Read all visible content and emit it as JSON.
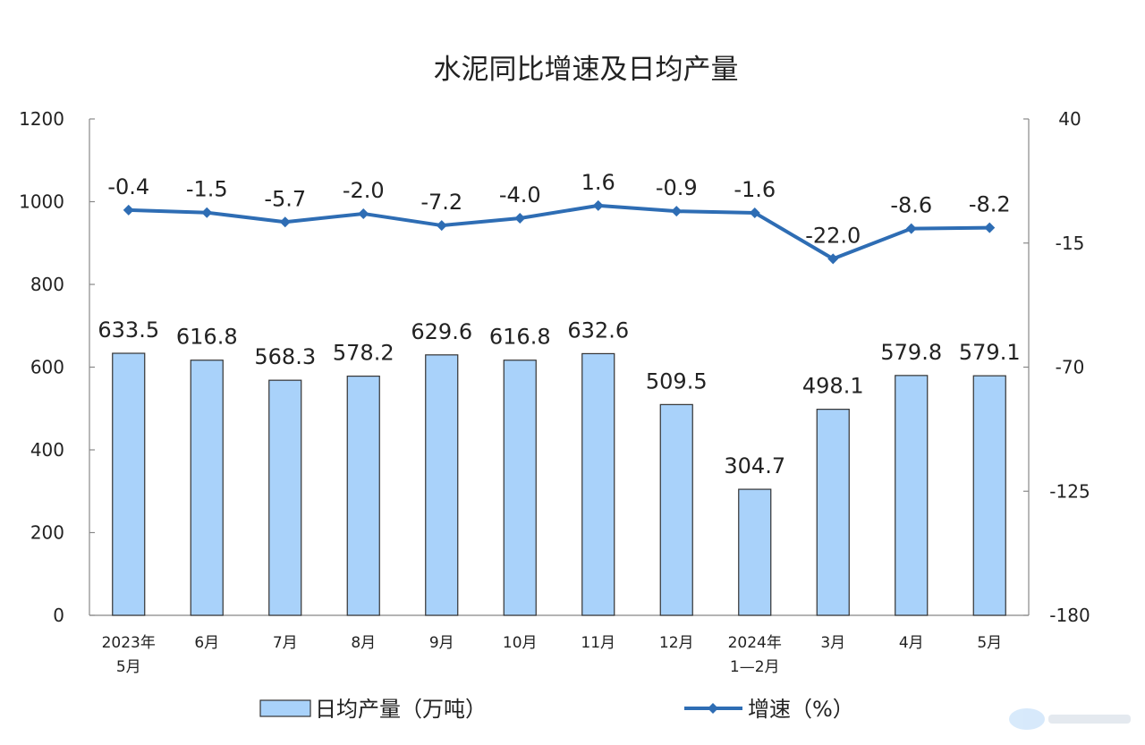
{
  "chart_data": {
    "type": "bar",
    "title": "水泥同比增速及日均产量",
    "categories": [
      [
        "2023年",
        "5月"
      ],
      [
        "6月"
      ],
      [
        "7月"
      ],
      [
        "8月"
      ],
      [
        "9月"
      ],
      [
        "10月"
      ],
      [
        "11月"
      ],
      [
        "12月"
      ],
      [
        "2024年",
        "1—2月"
      ],
      [
        "3月"
      ],
      [
        "4月"
      ],
      [
        "5月"
      ]
    ],
    "series": [
      {
        "name": "日均产量（万吨）",
        "type": "bar",
        "axis": "left",
        "color": "#a9d2fa",
        "values": [
          633.5,
          616.8,
          568.3,
          578.2,
          629.6,
          616.8,
          632.6,
          509.5,
          304.7,
          498.1,
          579.8,
          579.1
        ],
        "labels": [
          "633.5",
          "616.8",
          "568.3",
          "578.2",
          "629.6",
          "616.8",
          "632.6",
          "509.5",
          "304.7",
          "498.1",
          "579.8",
          "579.1"
        ]
      },
      {
        "name": "增速（%）",
        "type": "line",
        "axis": "right",
        "color": "#2e6db4",
        "values": [
          -0.4,
          -1.5,
          -5.7,
          -2.0,
          -7.2,
          -4.0,
          1.6,
          -0.9,
          -1.6,
          -22.0,
          -8.6,
          -8.2
        ],
        "labels": [
          "-0.4",
          "-1.5",
          "-5.7",
          "-2.0",
          "-7.2",
          "-4.0",
          "1.6",
          "-0.9",
          "-1.6",
          "-22.0",
          "-8.6",
          "-8.2"
        ]
      }
    ],
    "y_left": {
      "min": 0,
      "max": 1200,
      "ticks": [
        "0",
        "200",
        "400",
        "600",
        "800",
        "1000",
        "1200"
      ]
    },
    "y_right": {
      "min": -180,
      "max": 40,
      "ticks": [
        "-180",
        "-125",
        "-70",
        "-15",
        "40"
      ]
    },
    "legend": "bottom",
    "grid": false
  }
}
